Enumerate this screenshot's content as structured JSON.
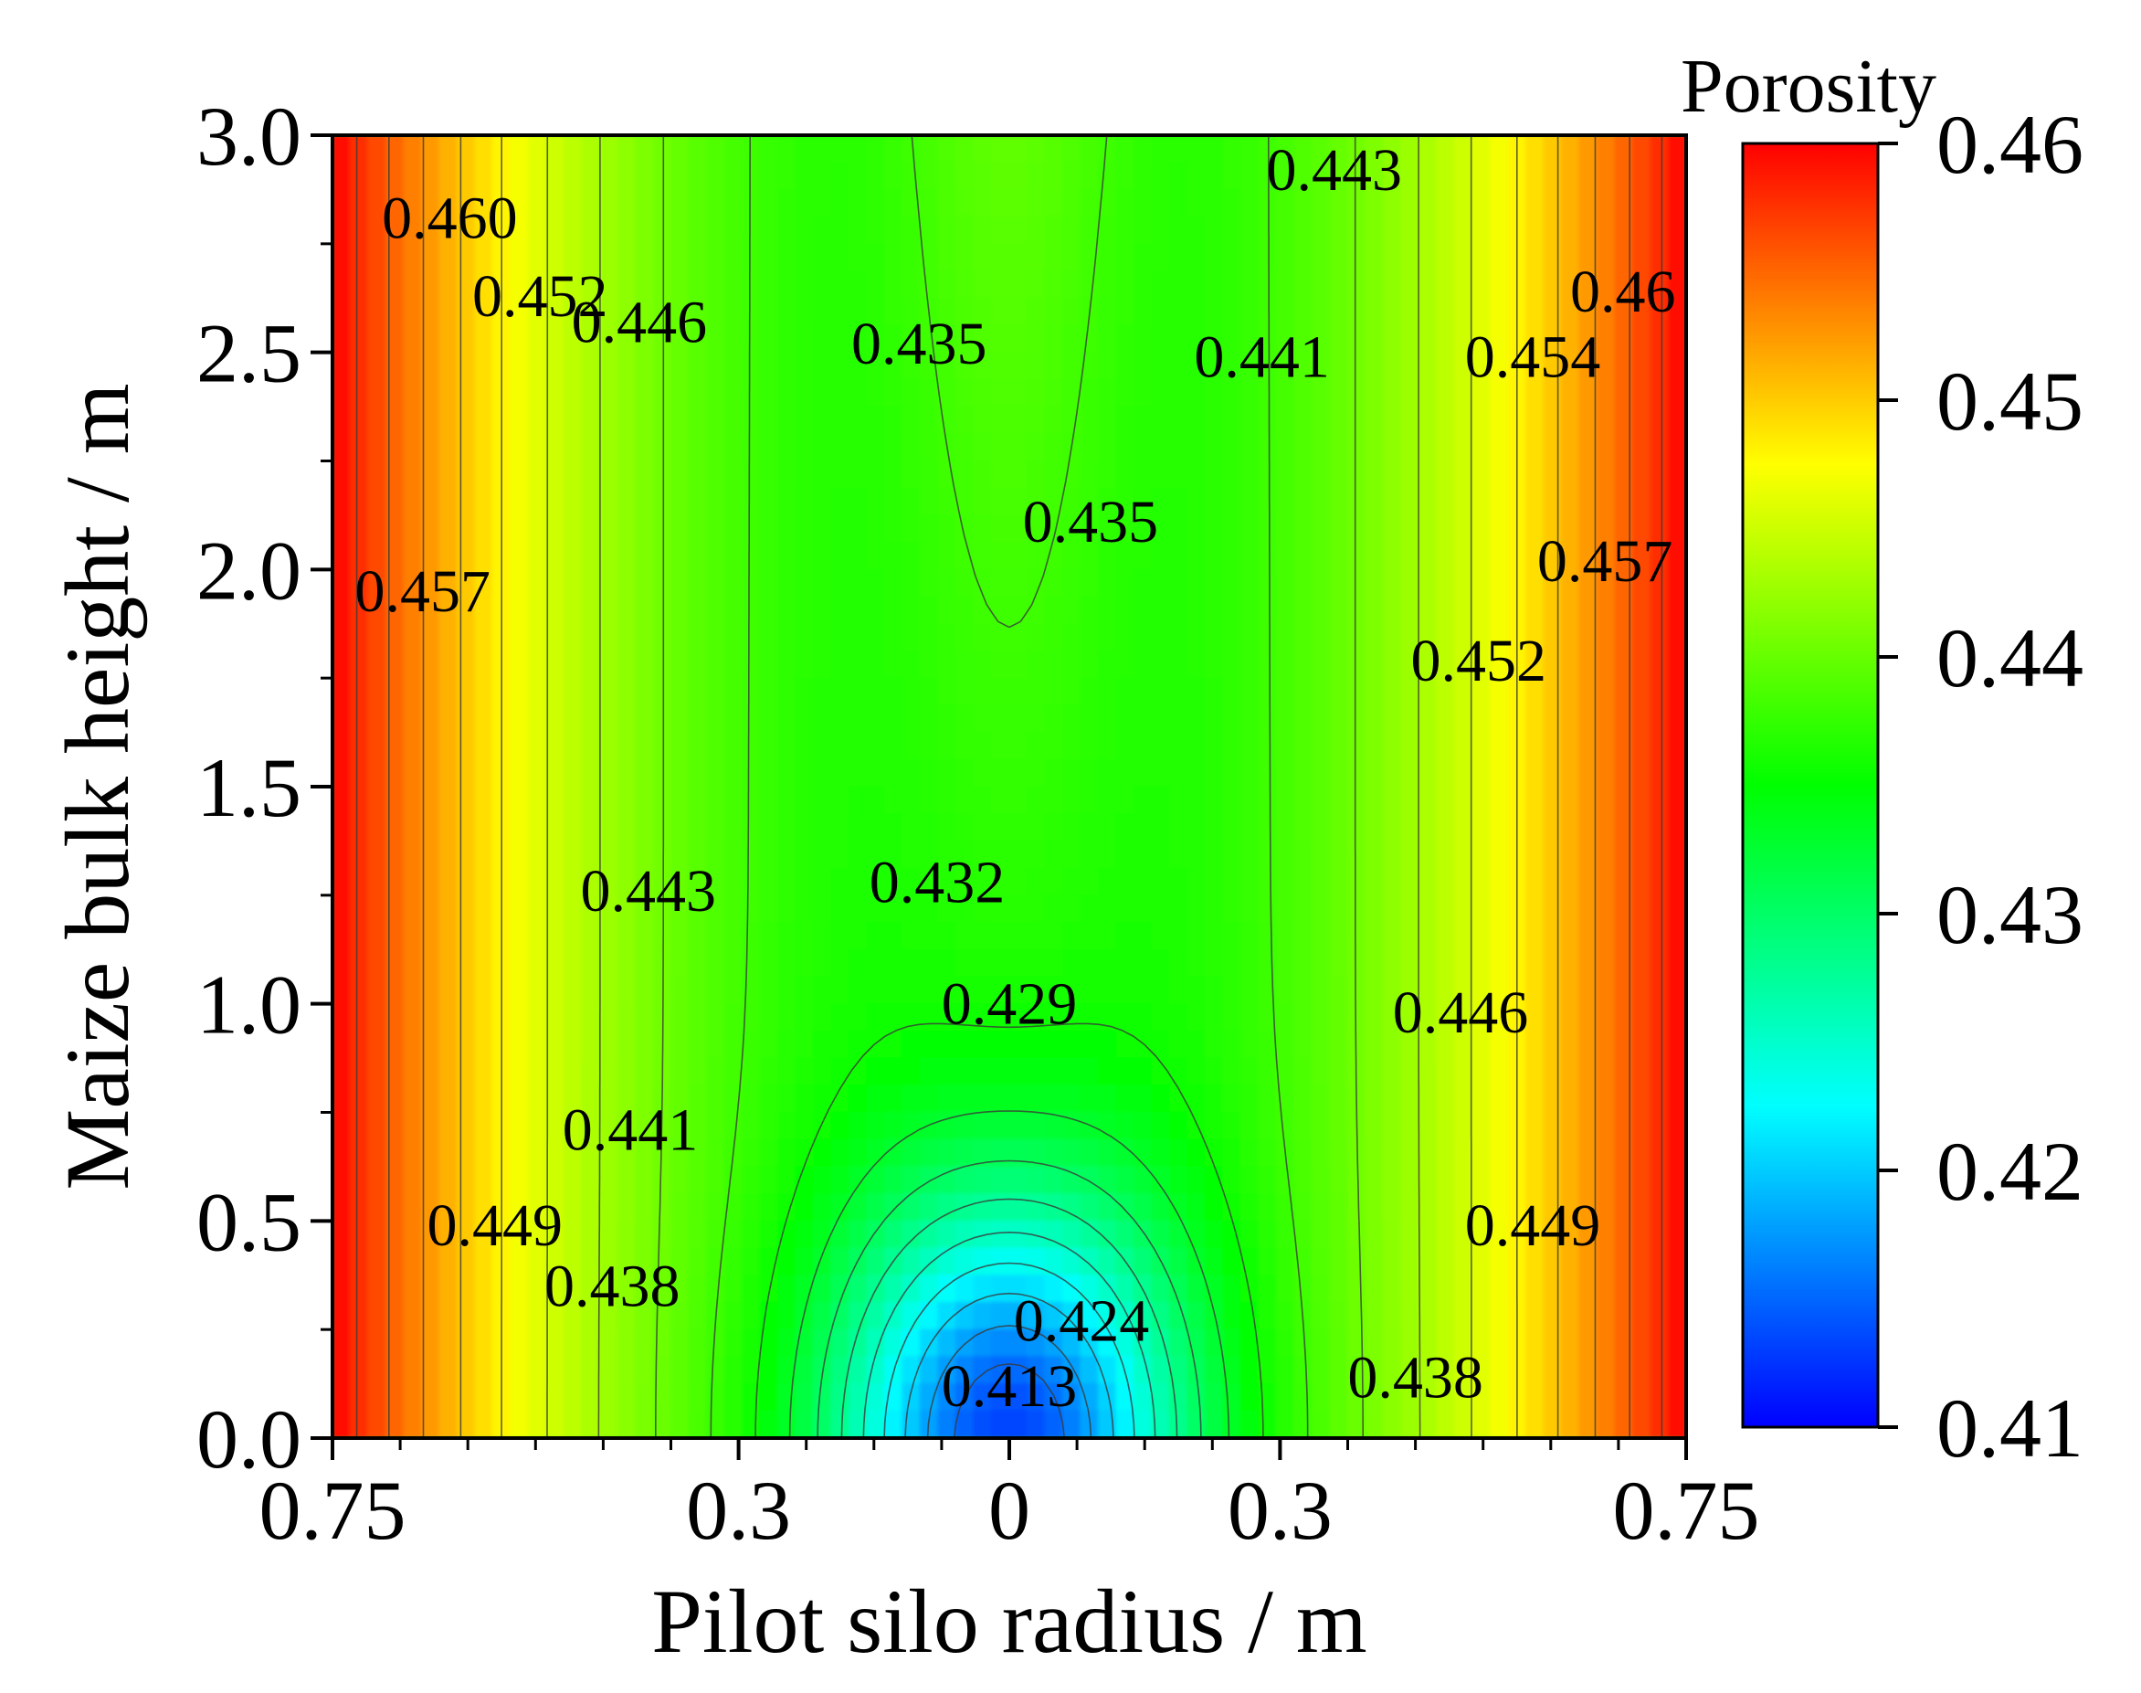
{
  "chart_data": {
    "type": "heatmap",
    "subtype": "filled-contour",
    "xlabel": "Pilot silo radius  / m",
    "ylabel": "Maize bulk height  / m",
    "x_tick_labels": [
      "0.75",
      "0.3",
      "0",
      "0.3",
      "0.75"
    ],
    "x_tick_values": [
      -0.75,
      -0.3,
      0,
      0.3,
      0.75
    ],
    "xlim": [
      -0.75,
      0.75
    ],
    "y_tick_labels": [
      "0.0",
      "0.5",
      "1.0",
      "1.5",
      "2.0",
      "2.5",
      "3.0"
    ],
    "y_tick_values": [
      0.0,
      0.5,
      1.0,
      1.5,
      2.0,
      2.5,
      3.0
    ],
    "ylim": [
      0.0,
      3.0
    ],
    "colorbar": {
      "title": "Porosity",
      "tick_labels": [
        "0.46",
        "0.45",
        "0.44",
        "0.43",
        "0.42",
        "0.41"
      ],
      "tick_values": [
        0.46,
        0.45,
        0.44,
        0.43,
        0.42,
        0.41
      ],
      "range": [
        0.41,
        0.46
      ],
      "colors": [
        "#0000ff",
        "#00ffff",
        "#00ff00",
        "#ffff00",
        "#ff0000"
      ]
    },
    "contour_labels": [
      {
        "text": "0.460",
        "x": -0.62,
        "y": 2.81
      },
      {
        "text": "0.452",
        "x": -0.52,
        "y": 2.63
      },
      {
        "text": "0.446",
        "x": -0.41,
        "y": 2.57
      },
      {
        "text": "0.435",
        "x": -0.1,
        "y": 2.52
      },
      {
        "text": "0.443",
        "x": 0.36,
        "y": 2.92
      },
      {
        "text": "0.441",
        "x": 0.28,
        "y": 2.49
      },
      {
        "text": "0.454",
        "x": 0.58,
        "y": 2.49
      },
      {
        "text": "0.46",
        "x": 0.68,
        "y": 2.64
      },
      {
        "text": "0.435",
        "x": 0.09,
        "y": 2.11
      },
      {
        "text": "0.457",
        "x": -0.65,
        "y": 1.95
      },
      {
        "text": "0.457",
        "x": 0.66,
        "y": 2.02
      },
      {
        "text": "0.452",
        "x": 0.52,
        "y": 1.79
      },
      {
        "text": "0.443",
        "x": -0.4,
        "y": 1.26
      },
      {
        "text": "0.432",
        "x": -0.08,
        "y": 1.28
      },
      {
        "text": "0.429",
        "x": 0.0,
        "y": 1.0
      },
      {
        "text": "0.446",
        "x": 0.5,
        "y": 0.98
      },
      {
        "text": "0.441",
        "x": -0.42,
        "y": 0.71
      },
      {
        "text": "0.449",
        "x": -0.57,
        "y": 0.49
      },
      {
        "text": "0.449",
        "x": 0.58,
        "y": 0.49
      },
      {
        "text": "0.438",
        "x": -0.44,
        "y": 0.35
      },
      {
        "text": "0.424",
        "x": 0.08,
        "y": 0.27
      },
      {
        "text": "0.413",
        "x": 0.0,
        "y": 0.12
      },
      {
        "text": "0.438",
        "x": 0.45,
        "y": 0.14
      }
    ]
  }
}
